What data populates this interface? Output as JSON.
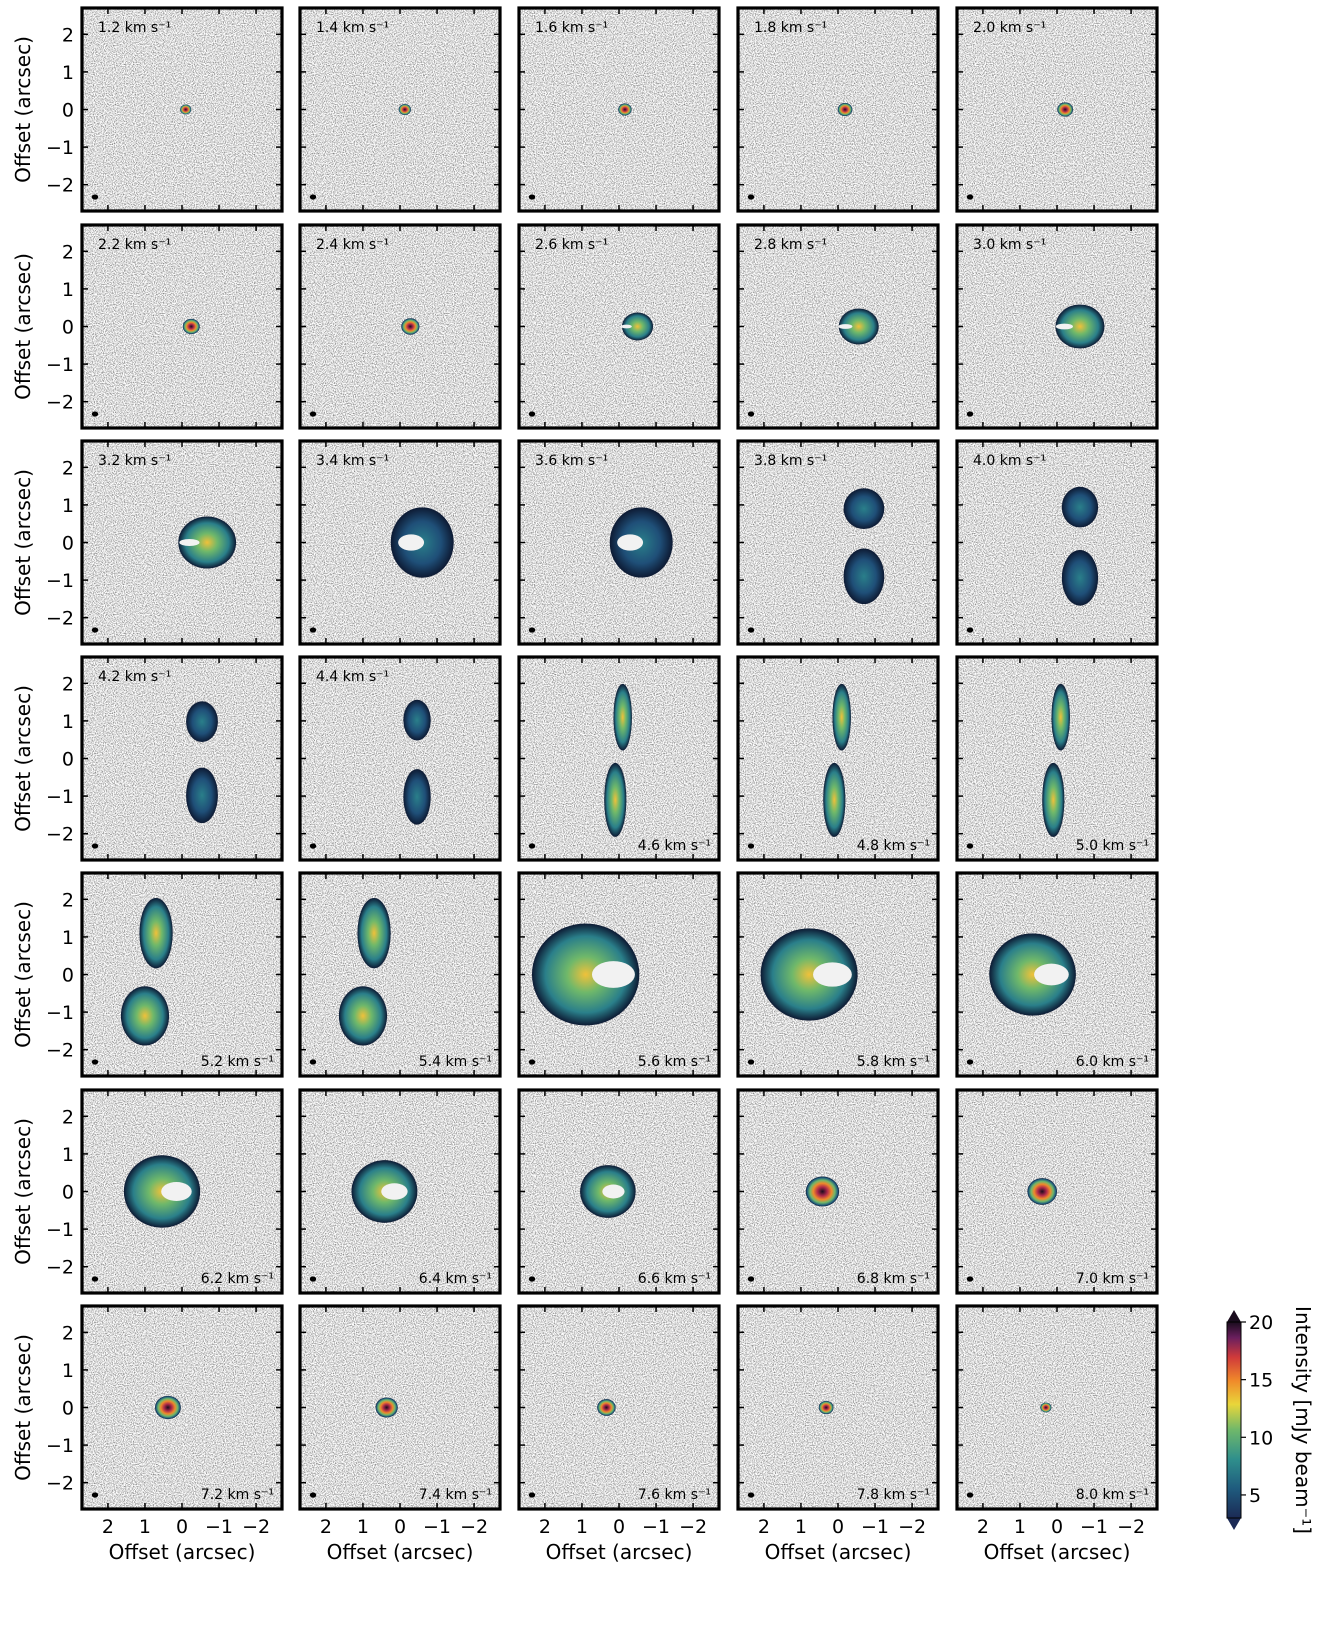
{
  "chart_data": {
    "type": "heatmap",
    "description_type": "channel-map grid",
    "rows": 7,
    "cols": 5,
    "velocity_unit": "km s⁻¹",
    "channels": [
      {
        "v": "1.2",
        "label_pos": "top-left"
      },
      {
        "v": "1.4",
        "label_pos": "top-left"
      },
      {
        "v": "1.6",
        "label_pos": "top-left"
      },
      {
        "v": "1.8",
        "label_pos": "top-left"
      },
      {
        "v": "2.0",
        "label_pos": "top-left"
      },
      {
        "v": "2.2",
        "label_pos": "top-left"
      },
      {
        "v": "2.4",
        "label_pos": "top-left"
      },
      {
        "v": "2.6",
        "label_pos": "top-left"
      },
      {
        "v": "2.8",
        "label_pos": "top-left"
      },
      {
        "v": "3.0",
        "label_pos": "top-left"
      },
      {
        "v": "3.2",
        "label_pos": "top-left"
      },
      {
        "v": "3.4",
        "label_pos": "top-left"
      },
      {
        "v": "3.6",
        "label_pos": "top-left"
      },
      {
        "v": "3.8",
        "label_pos": "top-left"
      },
      {
        "v": "4.0",
        "label_pos": "top-left"
      },
      {
        "v": "4.2",
        "label_pos": "top-left"
      },
      {
        "v": "4.4",
        "label_pos": "top-left"
      },
      {
        "v": "4.6",
        "label_pos": "bottom-right"
      },
      {
        "v": "4.8",
        "label_pos": "bottom-right"
      },
      {
        "v": "5.0",
        "label_pos": "bottom-right"
      },
      {
        "v": "5.2",
        "label_pos": "bottom-right"
      },
      {
        "v": "5.4",
        "label_pos": "bottom-right"
      },
      {
        "v": "5.6",
        "label_pos": "bottom-right"
      },
      {
        "v": "5.8",
        "label_pos": "bottom-right"
      },
      {
        "v": "6.0",
        "label_pos": "bottom-right"
      },
      {
        "v": "6.2",
        "label_pos": "bottom-right"
      },
      {
        "v": "6.4",
        "label_pos": "bottom-right"
      },
      {
        "v": "6.6",
        "label_pos": "bottom-right"
      },
      {
        "v": "6.8",
        "label_pos": "bottom-right"
      },
      {
        "v": "7.0",
        "label_pos": "bottom-right"
      },
      {
        "v": "7.2",
        "label_pos": "bottom-right"
      },
      {
        "v": "7.4",
        "label_pos": "bottom-right"
      },
      {
        "v": "7.6",
        "label_pos": "bottom-right"
      },
      {
        "v": "7.8",
        "label_pos": "bottom-right"
      },
      {
        "v": "8.0",
        "label_pos": "bottom-right"
      }
    ],
    "xlabel": "Offset (arcsec)",
    "ylabel": "Offset (arcsec)",
    "xlim": [
      2.7,
      -2.7
    ],
    "ylim": [
      -2.7,
      2.7
    ],
    "xticks": [
      2,
      1,
      0,
      -1,
      -2
    ],
    "yticks": [
      2,
      1,
      0,
      -1,
      -2
    ],
    "xtick_labels": [
      "2",
      "1",
      "0",
      "−1",
      "−2"
    ],
    "ytick_labels": [
      "2",
      "1",
      "0",
      "−1",
      "−2"
    ],
    "colorbar": {
      "label": "Intensity [mJy beam⁻¹]",
      "range": [
        3,
        20
      ],
      "ticks": [
        5,
        10,
        15,
        20
      ],
      "tick_labels": [
        "5",
        "10",
        "15",
        "20"
      ],
      "colors": [
        "#1b2a55",
        "#1f5b7e",
        "#2f8f8c",
        "#6fb86a",
        "#e9d63a",
        "#f08a2a",
        "#d03a3a",
        "#6a1f5e",
        "#1a0c1e"
      ]
    },
    "background_color": "grey noise below threshold",
    "beam_marker": "bottom-left"
  }
}
